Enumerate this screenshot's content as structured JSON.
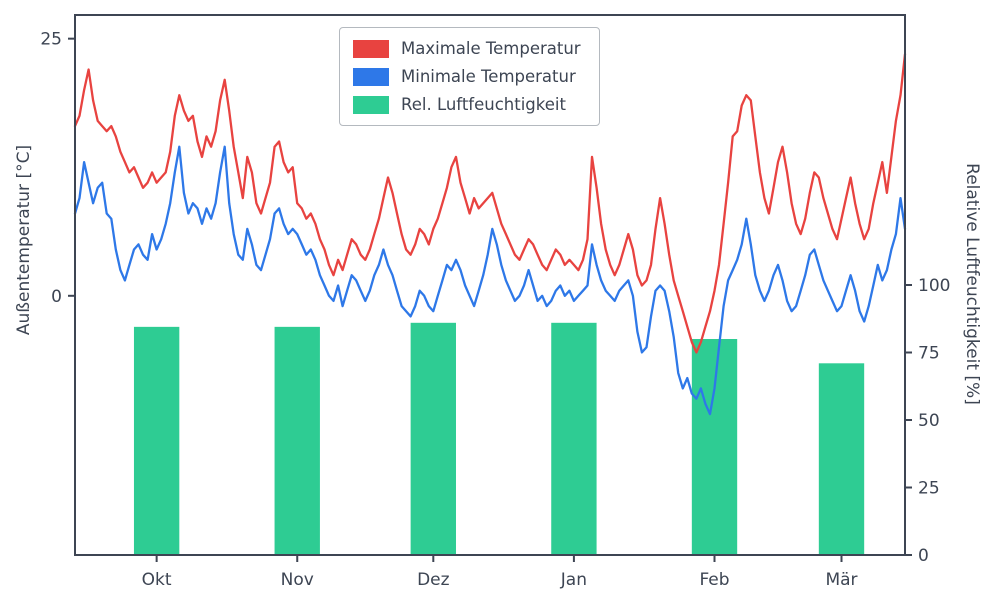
{
  "chart_data": {
    "type": "line+bar",
    "title": "",
    "ylabel_left": "Außentemperatur [°C]",
    "ylabel_right": "Relative Luftfeuchtigkeit [%]",
    "x_tick_labels": [
      "Okt",
      "Nov",
      "Dez",
      "Jan",
      "Feb",
      "Mär"
    ],
    "x_tick_days": [
      18,
      49,
      79,
      110,
      141,
      169
    ],
    "x_range_days": [
      0,
      183
    ],
    "ylim_left": [
      -25.2,
      27.3
    ],
    "yticks_left": [
      0,
      25
    ],
    "ylim_right": [
      0,
      200
    ],
    "yticks_right": [
      0,
      25,
      50,
      75,
      100
    ],
    "axis_color": "#3d4553",
    "grid": false,
    "legend_position": "upper center",
    "series": [
      {
        "name": "Maximale Temperatur",
        "type": "line",
        "axis": "left",
        "color": "#e84340",
        "values": [
          16.5,
          17.5,
          20.0,
          22.0,
          19.0,
          17.0,
          16.5,
          16.0,
          16.5,
          15.5,
          14.0,
          13.0,
          12.0,
          12.5,
          11.5,
          10.5,
          11.0,
          12.0,
          11.0,
          11.5,
          12.0,
          14.0,
          17.5,
          19.5,
          18.0,
          17.0,
          17.5,
          15.0,
          13.5,
          15.5,
          14.5,
          16.0,
          19.0,
          21.0,
          18.0,
          14.5,
          12.0,
          9.5,
          13.5,
          12.0,
          9.0,
          8.0,
          9.5,
          11.0,
          14.5,
          15.0,
          13.0,
          12.0,
          12.5,
          9.0,
          8.5,
          7.5,
          8.0,
          7.0,
          5.5,
          4.5,
          3.0,
          2.0,
          3.5,
          2.5,
          4.0,
          5.5,
          5.0,
          4.0,
          3.5,
          4.5,
          6.0,
          7.5,
          9.5,
          11.5,
          10.0,
          8.0,
          6.0,
          4.5,
          4.0,
          5.0,
          6.5,
          6.0,
          5.0,
          6.5,
          7.5,
          9.0,
          10.5,
          12.5,
          13.5,
          11.0,
          9.5,
          8.0,
          9.5,
          8.5,
          9.0,
          9.5,
          10.0,
          8.5,
          7.0,
          6.0,
          5.0,
          4.0,
          3.5,
          4.5,
          5.5,
          5.0,
          4.0,
          3.0,
          2.5,
          3.5,
          4.5,
          4.0,
          3.0,
          3.5,
          3.0,
          2.5,
          3.5,
          5.5,
          13.5,
          10.5,
          7.0,
          4.5,
          3.0,
          2.0,
          3.0,
          4.5,
          6.0,
          4.5,
          2.0,
          1.0,
          1.5,
          3.0,
          6.5,
          9.5,
          7.0,
          4.0,
          1.5,
          0.0,
          -1.5,
          -3.0,
          -4.5,
          -5.5,
          -4.5,
          -3.0,
          -1.5,
          0.5,
          3.0,
          7.0,
          11.0,
          15.5,
          16.0,
          18.5,
          19.5,
          19.0,
          15.5,
          12.0,
          9.5,
          8.0,
          10.5,
          13.0,
          14.5,
          12.0,
          9.0,
          7.0,
          6.0,
          7.5,
          10.0,
          12.0,
          11.5,
          9.5,
          8.0,
          6.5,
          5.5,
          7.5,
          9.5,
          11.5,
          9.0,
          7.0,
          5.5,
          6.5,
          9.0,
          11.0,
          13.0,
          10.0,
          13.5,
          17.0,
          19.5,
          23.5
        ]
      },
      {
        "name": "Minimale Temperatur",
        "type": "line",
        "axis": "left",
        "color": "#2e78e8",
        "values": [
          8.0,
          9.5,
          13.0,
          11.0,
          9.0,
          10.5,
          11.0,
          8.0,
          7.5,
          4.5,
          2.5,
          1.5,
          3.0,
          4.5,
          5.0,
          4.0,
          3.5,
          6.0,
          4.5,
          5.5,
          7.0,
          9.0,
          12.0,
          14.5,
          10.0,
          8.0,
          9.0,
          8.5,
          7.0,
          8.5,
          7.5,
          9.0,
          12.0,
          14.5,
          9.0,
          6.0,
          4.0,
          3.5,
          6.5,
          5.0,
          3.0,
          2.5,
          4.0,
          5.5,
          8.0,
          8.5,
          7.0,
          6.0,
          6.5,
          6.0,
          5.0,
          4.0,
          4.5,
          3.5,
          2.0,
          1.0,
          0.0,
          -0.5,
          1.0,
          -1.0,
          0.5,
          2.0,
          1.5,
          0.5,
          -0.5,
          0.5,
          2.0,
          3.0,
          4.5,
          3.0,
          2.0,
          0.5,
          -1.0,
          -1.5,
          -2.0,
          -1.0,
          0.5,
          0.0,
          -1.0,
          -1.5,
          0.0,
          1.5,
          3.0,
          2.5,
          3.5,
          2.5,
          1.0,
          0.0,
          -1.0,
          0.5,
          2.0,
          4.0,
          6.5,
          5.0,
          3.0,
          1.5,
          0.5,
          -0.5,
          0.0,
          1.0,
          2.5,
          1.0,
          -0.5,
          0.0,
          -1.0,
          -0.5,
          0.5,
          1.0,
          0.0,
          0.5,
          -0.5,
          0.0,
          0.5,
          1.0,
          5.0,
          3.0,
          1.5,
          0.5,
          0.0,
          -0.5,
          0.5,
          1.0,
          1.5,
          0.0,
          -3.5,
          -5.5,
          -5.0,
          -2.0,
          0.5,
          1.0,
          0.5,
          -1.5,
          -4.0,
          -7.5,
          -9.0,
          -8.0,
          -9.5,
          -10.0,
          -9.0,
          -10.5,
          -11.5,
          -9.0,
          -5.0,
          -1.0,
          1.5,
          2.5,
          3.5,
          5.0,
          7.5,
          5.0,
          2.0,
          0.5,
          -0.5,
          0.5,
          2.0,
          3.0,
          1.5,
          -0.5,
          -1.5,
          -1.0,
          0.5,
          2.0,
          4.0,
          4.5,
          3.0,
          1.5,
          0.5,
          -0.5,
          -1.5,
          -1.0,
          0.5,
          2.0,
          0.5,
          -1.5,
          -2.5,
          -1.0,
          1.0,
          3.0,
          1.5,
          2.5,
          4.5,
          6.0,
          9.5,
          6.5
        ]
      },
      {
        "name": "Rel. Luftfeuchtigkeit",
        "type": "bar",
        "axis": "right",
        "color": "#2ecc93",
        "x_days": [
          18,
          49,
          79,
          110,
          141,
          169
        ],
        "bar_width_days": 10,
        "values": [
          84.5,
          84.5,
          86.0,
          86.0,
          80.0,
          71.0
        ]
      }
    ]
  }
}
